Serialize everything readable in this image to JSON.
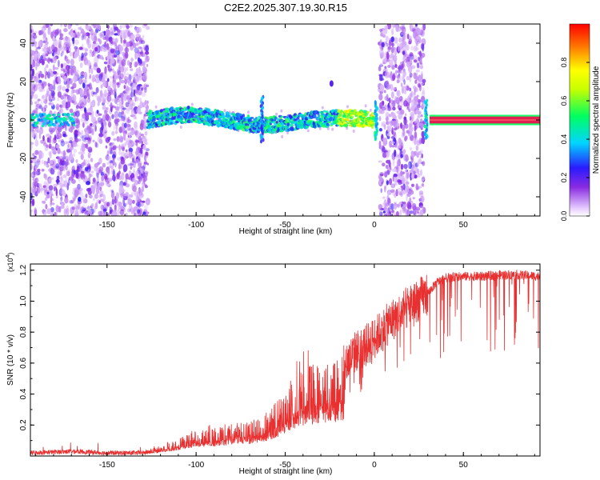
{
  "title": "C2E2.2025.307.19.30.R15",
  "chart_data": [
    {
      "type": "heatmap",
      "title": "C2E2.2025.307.19.30.R15",
      "xlabel": "Height of straight line (km)",
      "ylabel": "Frequency (Hz)",
      "xlim": [
        -193,
        93
      ],
      "ylim": [
        -50,
        50
      ],
      "xticks": [
        -150,
        -100,
        -50,
        0,
        50
      ],
      "xtick_labels": [
        "-150",
        "-100",
        "-50",
        "0",
        "50"
      ],
      "yticks": [
        -40,
        -20,
        0,
        20,
        40
      ],
      "ytick_labels": [
        "-40",
        "-20",
        "0",
        "20",
        "40"
      ],
      "colorbar": {
        "label": "Normalized spectral amplitude",
        "range": [
          0,
          1
        ],
        "ticks": [
          0.0,
          0.2,
          0.4,
          0.6,
          0.8
        ],
        "tick_labels": [
          "0.0",
          "0.2",
          "0.4",
          "0.6",
          "0.8"
        ]
      },
      "regions": [
        {
          "name": "broadband-noise",
          "x": [
            -193,
            -127
          ],
          "freq": [
            -50,
            50
          ],
          "amplitude": 0.15
        },
        {
          "name": "narrow-band",
          "x": [
            -127,
            0
          ],
          "freq_center": 0,
          "freq_halfwidth": 4,
          "amplitude": 0.45
        },
        {
          "name": "broadband-noise",
          "x": [
            3,
            28
          ],
          "freq": [
            -50,
            50
          ],
          "amplitude": 0.15
        },
        {
          "name": "steady-tone",
          "x": [
            31,
            93
          ],
          "freq_center": 0,
          "freq_halfwidth": 1.5,
          "amplitude": 1.0
        }
      ],
      "features": [
        {
          "x": -24,
          "freq": 19,
          "amplitude": 0.2
        },
        {
          "x": -63,
          "freq": -12,
          "amplitude": 0.2
        },
        {
          "x": 1,
          "freq": 10,
          "amplitude": 0.3
        },
        {
          "x": 29,
          "freq": -10,
          "amplitude": 0.3
        }
      ]
    },
    {
      "type": "line",
      "xlabel": "Height of straight line (km)",
      "ylabel": "SNR (10 * v/v)",
      "scale_label": "(x10",
      "scale_exp": "4",
      "scale_close": ")",
      "xlim": [
        -193,
        93
      ],
      "ylim": [
        0,
        1.24
      ],
      "xticks": [
        -150,
        -100,
        -50,
        0,
        50
      ],
      "xtick_labels": [
        "-150",
        "-100",
        "-50",
        "0",
        "50"
      ],
      "yticks": [
        0.2,
        0.4,
        0.6,
        0.8,
        1.0,
        1.2
      ],
      "ytick_labels": [
        "0.2",
        "0.4",
        "0.6",
        "0.8",
        "1.0",
        "1.2"
      ],
      "series": [
        {
          "name": "SNR",
          "color": "#e83030",
          "x": [
            -193,
            -170,
            -150,
            -130,
            -120,
            -110,
            -100,
            -90,
            -80,
            -70,
            -60,
            -50,
            -40,
            -30,
            -17,
            -16,
            -10,
            -5,
            0,
            10,
            20,
            30,
            35,
            40,
            50,
            60,
            70,
            80,
            93
          ],
          "y": [
            0.02,
            0.03,
            0.02,
            0.02,
            0.04,
            0.07,
            0.1,
            0.11,
            0.13,
            0.14,
            0.17,
            0.26,
            0.35,
            0.38,
            0.4,
            0.6,
            0.68,
            0.71,
            0.76,
            0.88,
            0.97,
            1.05,
            1.12,
            1.15,
            1.16,
            1.16,
            1.17,
            1.17,
            1.16
          ]
        }
      ]
    }
  ]
}
